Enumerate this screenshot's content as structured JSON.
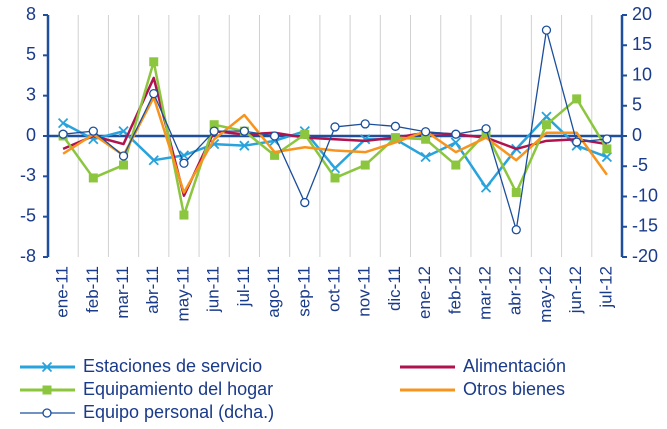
{
  "chart_data": {
    "type": "line",
    "categories": [
      "ene-11",
      "feb-11",
      "mar-11",
      "abr-11",
      "may-11",
      "jun-11",
      "jul-11",
      "ago-11",
      "sep-11",
      "oct-11",
      "nov-11",
      "dic-11",
      "ene-12",
      "feb-12",
      "mar-12",
      "abr-12",
      "may-12",
      "jun-12",
      "jul-12"
    ],
    "ylim": [
      -7.5,
      7.5
    ],
    "yticks": [
      {
        "value": -7.5,
        "label": "-8"
      },
      {
        "value": -5,
        "label": "-5"
      },
      {
        "value": -2.5,
        "label": "-3"
      },
      0,
      {
        "value": 2.5,
        "label": "3"
      },
      5,
      {
        "value": 7.5,
        "label": "8"
      }
    ],
    "y2lim": [
      -20,
      20
    ],
    "y2ticks": [
      -20,
      -15,
      -10,
      -5,
      0,
      5,
      10,
      15,
      20
    ],
    "grid": true,
    "series": [
      {
        "name": "Estaciones de servicio",
        "color": "#29a3dc",
        "marker": "x",
        "values": [
          0.8,
          -0.2,
          0.3,
          -1.5,
          -1.2,
          -0.5,
          -0.6,
          -0.3,
          0.3,
          -2.0,
          -0.2,
          -0.2,
          -1.3,
          -0.4,
          -3.2,
          -0.8,
          1.2,
          -0.6,
          -1.3
        ]
      },
      {
        "name": "Alimentación",
        "color": "#b0124e",
        "marker": "none",
        "values": [
          -0.8,
          0.0,
          -0.5,
          3.6,
          -3.7,
          0.3,
          0.1,
          0.2,
          -0.1,
          -0.2,
          -0.3,
          -0.1,
          0.2,
          0.1,
          -0.1,
          -0.8,
          -0.3,
          -0.2,
          -0.5
        ]
      },
      {
        "name": "Equipamiento del hogar",
        "color": "#8cc63f",
        "marker": "square",
        "values": [
          0.0,
          -2.6,
          -1.8,
          4.6,
          -4.9,
          0.7,
          0.3,
          -1.2,
          0.1,
          -2.6,
          -1.8,
          -0.1,
          -0.2,
          -1.8,
          0.2,
          -3.5,
          0.7,
          2.3,
          -0.8
        ]
      },
      {
        "name": "Otros bienes",
        "color": "#f7941d",
        "marker": "none",
        "values": [
          -1.1,
          0.1,
          -1.2,
          2.4,
          -3.5,
          -0.2,
          1.3,
          -1.0,
          -0.7,
          -0.9,
          -1.0,
          -0.4,
          0.3,
          -1.0,
          -0.1,
          -1.5,
          0.2,
          0.2,
          -2.4
        ]
      },
      {
        "name": "Equipo personal (dcha.)",
        "color": "#1b4f9c",
        "marker": "circle",
        "axis": "y2",
        "values": [
          0.3,
          0.8,
          -3.3,
          7.0,
          -4.5,
          0.8,
          0.8,
          0.0,
          -11.0,
          1.5,
          2.0,
          1.6,
          0.7,
          0.3,
          1.2,
          -15.5,
          17.5,
          -1.0,
          -0.5
        ]
      }
    ]
  }
}
